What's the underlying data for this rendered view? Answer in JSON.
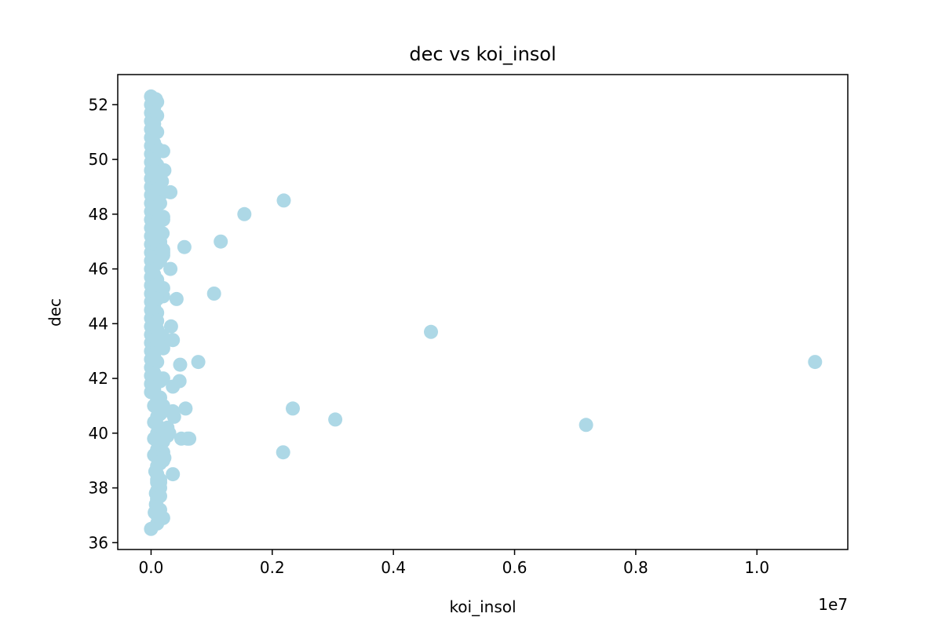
{
  "chart_data": {
    "type": "scatter",
    "title": "dec vs koi_insol",
    "xlabel": "koi_insol",
    "ylabel": "dec",
    "x_offset_label": "1e7",
    "xlim": [
      -0.055,
      1.15
    ],
    "ylim": [
      35.75,
      53.1
    ],
    "x_ticks": [
      0.0,
      0.2,
      0.4,
      0.6,
      0.8,
      1.0
    ],
    "x_tick_labels": [
      "0.0",
      "0.2",
      "0.4",
      "0.6",
      "0.8",
      "1.0"
    ],
    "y_ticks": [
      36,
      38,
      40,
      42,
      44,
      46,
      48,
      50,
      52
    ],
    "y_tick_labels": [
      "36",
      "38",
      "40",
      "42",
      "44",
      "46",
      "48",
      "50",
      "52"
    ],
    "marker_color": "#add8e6",
    "grid": false,
    "x": [
      0.0,
      0.0,
      0.0,
      0.0,
      0.0,
      0.0,
      0.0,
      0.0,
      0.0,
      0.0,
      0.0,
      0.0,
      0.0,
      0.0,
      0.0,
      0.0,
      0.0,
      0.0,
      0.0,
      0.0,
      0.0,
      0.0,
      0.0,
      0.0,
      0.0,
      0.0,
      0.0,
      0.0,
      0.0,
      0.0,
      0.0,
      0.0,
      0.0,
      0.0,
      0.0,
      0.0,
      0.0,
      0.01,
      0.01,
      0.01,
      0.01,
      0.01,
      0.01,
      0.01,
      0.01,
      0.01,
      0.01,
      0.01,
      0.01,
      0.01,
      0.01,
      0.01,
      0.01,
      0.01,
      0.01,
      0.01,
      0.01,
      0.01,
      0.01,
      0.01,
      0.01,
      0.01,
      0.01,
      0.01,
      0.01,
      0.01,
      0.01,
      0.01,
      0.01,
      0.01,
      0.015,
      0.015,
      0.015,
      0.015,
      0.015,
      0.015,
      0.015,
      0.015,
      0.015,
      0.015,
      0.015,
      0.015,
      0.005,
      0.005,
      0.005,
      0.005,
      0.005,
      0.005,
      0.005,
      0.005,
      0.005,
      0.005,
      0.005,
      0.005,
      0.005,
      0.005,
      0.005,
      0.005,
      0.005,
      0.005,
      0.005,
      0.005,
      0.02,
      0.02,
      0.02,
      0.02,
      0.02,
      0.02,
      0.02,
      0.02,
      0.0,
      0.008,
      0.01,
      0.005,
      0.012,
      0.008,
      0.003,
      0.006,
      0.007,
      0.008,
      0.008,
      0.017,
      0.02,
      0.018,
      0.015,
      0.03,
      0.015,
      0.015,
      0.02,
      0.02,
      0.01,
      0.01,
      0.02,
      0.01,
      0.02,
      0.02,
      0.01,
      0.01,
      0.02,
      0.02,
      0.01,
      0.01,
      0.015,
      0.02,
      0.015,
      0.01,
      0.02,
      0.01,
      0.015,
      0.015,
      0.022,
      0.032,
      0.019,
      0.032,
      0.055,
      0.042,
      0.048,
      0.033,
      0.036,
      0.047,
      0.078,
      0.036,
      0.036,
      0.057,
      0.038,
      0.06,
      0.027,
      0.027,
      0.05,
      0.063,
      0.022,
      0.036,
      0.02,
      0.104,
      0.115,
      0.154,
      0.219,
      0.234,
      0.304,
      0.218,
      0.462,
      0.718,
      1.096
    ],
    "y": [
      52.3,
      52.0,
      51.7,
      51.4,
      51.1,
      50.8,
      50.5,
      50.2,
      49.9,
      49.6,
      49.3,
      49.0,
      48.7,
      48.4,
      48.1,
      47.8,
      47.5,
      47.2,
      46.9,
      46.6,
      46.3,
      46.0,
      45.7,
      45.4,
      45.1,
      44.8,
      44.5,
      44.2,
      43.9,
      43.6,
      43.3,
      43.0,
      42.7,
      42.4,
      42.1,
      41.8,
      41.5,
      41.2,
      40.9,
      40.6,
      40.3,
      40.0,
      39.7,
      39.4,
      39.1,
      38.8,
      38.5,
      38.2,
      37.9,
      37.6,
      37.3,
      37.0,
      36.7,
      52.1,
      51.6,
      51.0,
      50.4,
      49.8,
      49.2,
      48.6,
      48.0,
      47.4,
      46.8,
      46.2,
      45.6,
      45.0,
      44.4,
      43.8,
      43.2,
      42.6,
      41.9,
      41.3,
      40.7,
      40.1,
      39.5,
      38.9,
      38.3,
      37.7,
      37.2,
      36.9,
      49.5,
      47.0,
      51.9,
      51.3,
      50.6,
      49.4,
      48.9,
      48.2,
      47.6,
      46.4,
      45.8,
      45.2,
      44.6,
      44.0,
      43.4,
      42.8,
      42.2,
      41.6,
      41.0,
      40.4,
      39.8,
      39.2,
      48.8,
      47.9,
      46.5,
      45.3,
      43.5,
      42.0,
      40.8,
      39.0,
      36.5,
      52.2,
      50.3,
      50.0,
      49.1,
      47.3,
      45.9,
      37.1,
      38.6,
      37.4,
      37.8,
      36.9,
      50.3,
      49.2,
      46.9,
      40.0,
      38.0,
      38.2,
      45.0,
      46.6,
      44.9,
      44.1,
      43.1,
      43.4,
      41.0,
      39.7,
      38.3,
      37.6,
      39.3,
      39.1,
      37.3,
      48.9,
      48.4,
      47.8,
      46.3,
      46.9,
      46.7,
      44.9,
      43.6,
      42.0,
      49.6,
      48.8,
      47.3,
      46.0,
      46.8,
      44.9,
      42.5,
      43.9,
      43.4,
      41.9,
      42.6,
      41.7,
      40.8,
      40.9,
      40.6,
      39.8,
      40.2,
      39.9,
      39.8,
      39.8,
      39.1,
      38.5,
      36.9,
      45.1,
      47.0,
      48.0,
      48.5,
      40.9,
      40.5,
      39.3,
      43.7,
      40.3,
      42.6
    ]
  }
}
